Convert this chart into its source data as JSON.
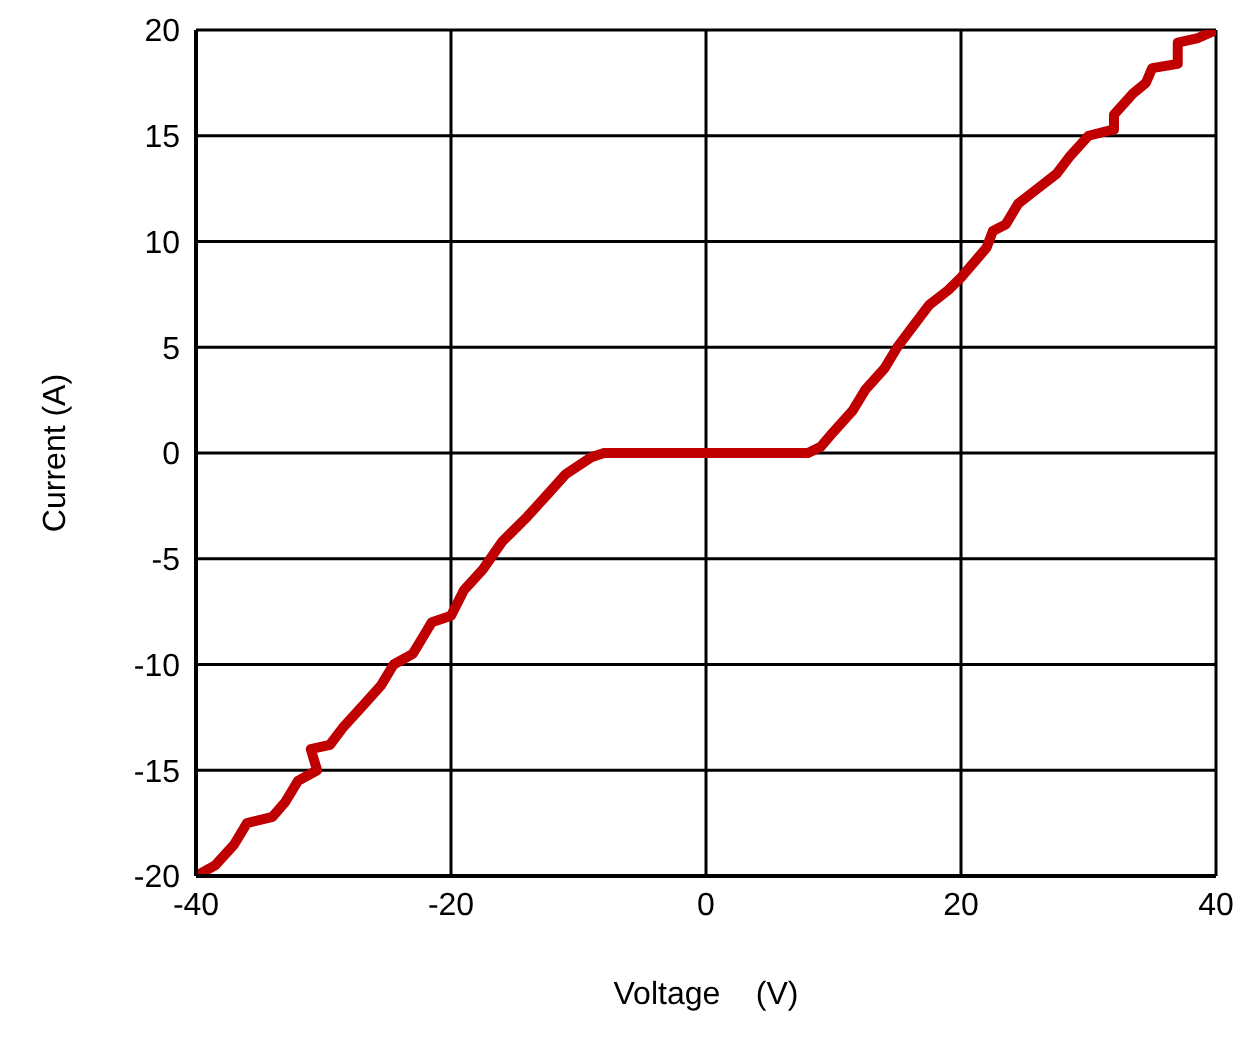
{
  "chart_data": {
    "type": "line",
    "xlabel": "Voltage    (V)",
    "ylabel": "Current (A)",
    "xlim": [
      -40,
      40
    ],
    "xticks": [
      -40,
      -20,
      0,
      20,
      40
    ],
    "ylim": [
      -20,
      20
    ],
    "yticks": [
      -20,
      -15,
      -10,
      -5,
      0,
      5,
      10,
      15,
      20
    ],
    "grid": true,
    "legend": false,
    "marker": "none",
    "line_style": "solid",
    "series": [
      {
        "color": "#c00000",
        "x": [
          -40,
          -38.5,
          -37,
          -36,
          -34,
          -33,
          -32,
          -30.5,
          -31,
          -29.5,
          -28.5,
          -27,
          -25.5,
          -24.5,
          -23,
          -22,
          -21.5,
          -20,
          -19,
          -17.5,
          -16,
          -14,
          -12.5,
          -11,
          -9,
          -8,
          0,
          8,
          9,
          10,
          11.5,
          12.5,
          14,
          15,
          16,
          17.5,
          19,
          20,
          22,
          22.5,
          23.5,
          24.5,
          26,
          27.5,
          28.5,
          30,
          32,
          32,
          33.5,
          34.5,
          35,
          37,
          37,
          38.5,
          40
        ],
        "values": [
          -20,
          -19.5,
          -18.5,
          -17.5,
          -17.2,
          -16.5,
          -15.5,
          -15,
          -14,
          -13.8,
          -13,
          -12,
          -11,
          -10,
          -9.5,
          -8.5,
          -8,
          -7.7,
          -6.5,
          -5.5,
          -4.2,
          -3,
          -2,
          -1,
          -0.2,
          0,
          0,
          0,
          0.3,
          1,
          2,
          3,
          4,
          5,
          5.8,
          7,
          7.7,
          8.3,
          9.7,
          10.5,
          10.8,
          11.8,
          12.5,
          13.2,
          14,
          15,
          15.3,
          16,
          17,
          17.5,
          18.2,
          18.4,
          19.4,
          19.6,
          20
        ]
      }
    ]
  }
}
